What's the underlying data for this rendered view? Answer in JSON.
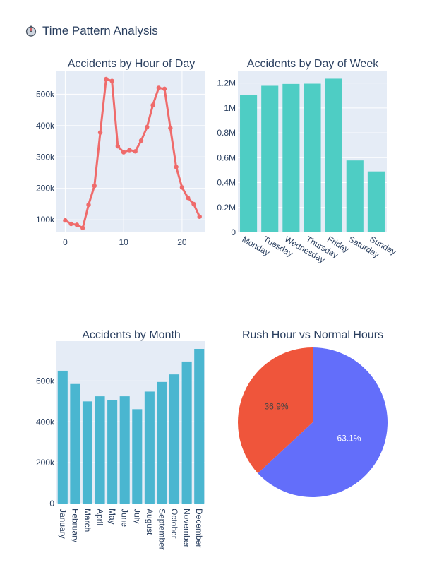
{
  "figure": {
    "title": "Time Pattern Analysis",
    "title_icon": "stopwatch-icon"
  },
  "chart_data": [
    {
      "type": "line",
      "title": "Accidents by Hour of Day",
      "xlabel": "",
      "ylabel": "",
      "x": [
        0,
        1,
        2,
        3,
        4,
        5,
        6,
        7,
        8,
        9,
        10,
        11,
        12,
        13,
        14,
        15,
        16,
        17,
        18,
        19,
        20,
        21,
        22,
        23
      ],
      "values": [
        98000,
        87000,
        84000,
        74000,
        148000,
        208000,
        378000,
        548000,
        542000,
        334000,
        315000,
        322000,
        318000,
        352000,
        395000,
        465000,
        520000,
        517000,
        392000,
        268000,
        203000,
        170000,
        150000,
        110000
      ],
      "xlim": [
        -1.5,
        24
      ],
      "ylim": [
        60000,
        575000
      ],
      "xticks": [
        0,
        10,
        20
      ],
      "yticks": [
        100000,
        200000,
        300000,
        400000,
        500000
      ],
      "ytick_labels": [
        "100k",
        "200k",
        "300k",
        "400k",
        "500k"
      ],
      "color": "#ef6b6b",
      "grid": true
    },
    {
      "type": "bar",
      "title": "Accidents by Day of Week",
      "categories": [
        "Monday",
        "Tuesday",
        "Wednesday",
        "Thursday",
        "Friday",
        "Saturday",
        "Sunday"
      ],
      "values": [
        1105000,
        1178000,
        1193000,
        1195000,
        1235000,
        578000,
        490000
      ],
      "ylim": [
        0,
        1300000
      ],
      "yticks": [
        0,
        200000,
        400000,
        600000,
        800000,
        1000000,
        1200000
      ],
      "ytick_labels": [
        "0",
        "0.2M",
        "0.4M",
        "0.6M",
        "0.8M",
        "1M",
        "1.2M"
      ],
      "color": "#4ecdc4",
      "grid": true
    },
    {
      "type": "bar",
      "title": "Accidents by Month",
      "categories": [
        "January",
        "February",
        "March",
        "April",
        "May",
        "June",
        "July",
        "August",
        "September",
        "October",
        "November",
        "December"
      ],
      "values": [
        650000,
        585000,
        500000,
        525000,
        505000,
        525000,
        462000,
        548000,
        595000,
        632000,
        695000,
        757000
      ],
      "ylim": [
        0,
        795000
      ],
      "yticks": [
        0,
        200000,
        400000,
        600000
      ],
      "ytick_labels": [
        "0",
        "200k",
        "400k",
        "600k"
      ],
      "color": "#4ab6d0",
      "grid": true
    },
    {
      "type": "pie",
      "title": "Rush Hour vs Normal Hours",
      "slices": [
        {
          "label": "63.1%",
          "value": 63.1,
          "color": "#636efa"
        },
        {
          "label": "36.9%",
          "value": 36.9,
          "color": "#ef553b"
        }
      ]
    }
  ]
}
